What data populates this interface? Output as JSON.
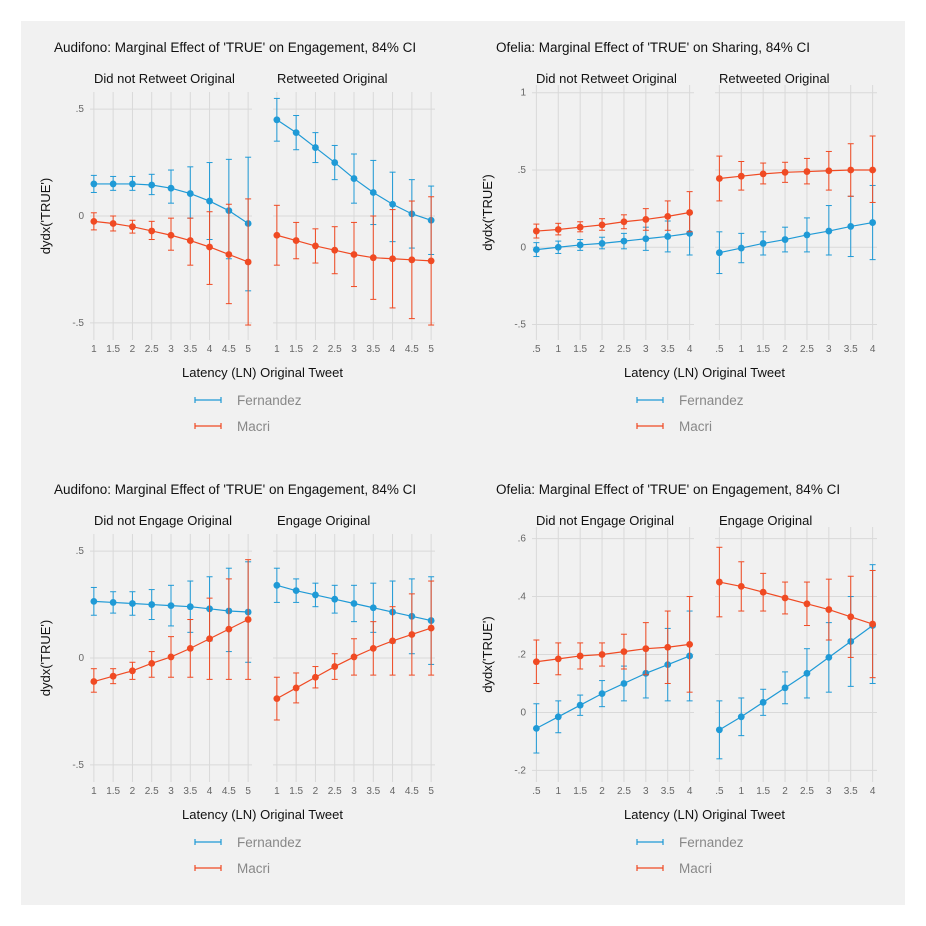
{
  "colors": {
    "background": "#f1f1f1",
    "grid": "#d9d9d9",
    "Fernandez": "#1f9ad6",
    "Macri": "#f04a23"
  },
  "chart_data": [
    {
      "type": "line",
      "title": "Audifono: Marginal Effect of 'TRUE' on Engagement, 84% CI",
      "xlabel": "Latency (LN) Original Tweet",
      "ylabel": "dydx('TRUE')",
      "ylim": [
        -0.58,
        0.58
      ],
      "yticks": [
        -0.5,
        0,
        0.5
      ],
      "ytick_labels": [
        "-.5",
        "0",
        ".5"
      ],
      "xlim": [
        0.9,
        5.1
      ],
      "xticks": [
        1,
        1.5,
        2,
        2.5,
        3,
        3.5,
        4,
        4.5,
        5
      ],
      "xtick_labels": [
        "1",
        "1.5",
        "2",
        "2.5",
        "3",
        "3.5",
        "4",
        "4.5",
        "5"
      ],
      "grid": true,
      "facets": [
        {
          "title": "Did not Retweet Original",
          "series": [
            {
              "name": "Fernandez",
              "x": [
                1,
                1.5,
                2,
                2.5,
                3,
                3.5,
                4,
                4.5,
                5
              ],
              "y": [
                0.15,
                0.15,
                0.15,
                0.145,
                0.13,
                0.105,
                0.07,
                0.025,
                -0.035
              ],
              "lo": [
                0.11,
                0.12,
                0.12,
                0.1,
                0.06,
                -0.01,
                -0.11,
                -0.2,
                -0.35
              ],
              "hi": [
                0.19,
                0.185,
                0.185,
                0.195,
                0.215,
                0.23,
                0.25,
                0.265,
                0.275
              ]
            },
            {
              "name": "Macri",
              "x": [
                1,
                1.5,
                2,
                2.5,
                3,
                3.5,
                4,
                4.5,
                5
              ],
              "y": [
                -0.025,
                -0.035,
                -0.05,
                -0.07,
                -0.09,
                -0.115,
                -0.145,
                -0.18,
                -0.215
              ],
              "lo": [
                -0.065,
                -0.07,
                -0.08,
                -0.11,
                -0.16,
                -0.23,
                -0.32,
                -0.41,
                -0.51
              ],
              "hi": [
                0.015,
                0.0,
                -0.02,
                -0.025,
                -0.01,
                -0.01,
                0.02,
                0.055,
                0.08
              ]
            }
          ]
        },
        {
          "title": "Retweeted Original",
          "series": [
            {
              "name": "Fernandez",
              "x": [
                1,
                1.5,
                2,
                2.5,
                3,
                3.5,
                4,
                4.5,
                5
              ],
              "y": [
                0.45,
                0.39,
                0.32,
                0.25,
                0.175,
                0.11,
                0.055,
                0.01,
                -0.02
              ],
              "lo": [
                0.35,
                0.31,
                0.25,
                0.17,
                0.06,
                -0.04,
                -0.12,
                -0.15,
                -0.18
              ],
              "hi": [
                0.55,
                0.47,
                0.39,
                0.33,
                0.29,
                0.26,
                0.205,
                0.17,
                0.14
              ]
            },
            {
              "name": "Macri",
              "x": [
                1,
                1.5,
                2,
                2.5,
                3,
                3.5,
                4,
                4.5,
                5
              ],
              "y": [
                -0.09,
                -0.115,
                -0.14,
                -0.16,
                -0.18,
                -0.195,
                -0.2,
                -0.205,
                -0.21
              ],
              "lo": [
                -0.23,
                -0.2,
                -0.22,
                -0.27,
                -0.33,
                -0.39,
                -0.43,
                -0.48,
                -0.51
              ],
              "hi": [
                0.05,
                -0.03,
                -0.06,
                -0.05,
                -0.03,
                0.0,
                0.03,
                0.07,
                0.09
              ]
            }
          ]
        }
      ],
      "legend": [
        "Fernandez",
        "Macri"
      ],
      "legend_position": "bottom"
    },
    {
      "type": "line",
      "title": "Ofelia: Marginal Effect of 'TRUE' on Sharing, 84% CI",
      "xlabel": "Latency (LN) Original Tweet",
      "ylabel": "dydx('TRUE')",
      "ylim": [
        -0.6,
        1.05
      ],
      "yticks": [
        -0.5,
        0,
        0.5,
        1
      ],
      "ytick_labels": [
        "-.5",
        "0",
        ".5",
        "1"
      ],
      "xlim": [
        0.4,
        4.1
      ],
      "xticks": [
        0.5,
        1,
        1.5,
        2,
        2.5,
        3,
        3.5,
        4
      ],
      "xtick_labels": [
        ".5",
        "1",
        "1.5",
        "2",
        "2.5",
        "3",
        "3.5",
        "4"
      ],
      "grid": true,
      "facets": [
        {
          "title": "Did not Retweet Original",
          "series": [
            {
              "name": "Fernandez",
              "x": [
                0.5,
                1,
                1.5,
                2,
                2.5,
                3,
                3.5,
                4
              ],
              "y": [
                -0.015,
                0.0,
                0.015,
                0.025,
                0.04,
                0.055,
                0.07,
                0.09
              ],
              "lo": [
                -0.06,
                -0.04,
                -0.02,
                -0.01,
                -0.01,
                -0.02,
                -0.03,
                -0.05
              ],
              "hi": [
                0.03,
                0.04,
                0.05,
                0.065,
                0.09,
                0.13,
                0.17,
                0.22
              ]
            },
            {
              "name": "Macri",
              "x": [
                0.5,
                1,
                1.5,
                2,
                2.5,
                3,
                3.5,
                4
              ],
              "y": [
                0.105,
                0.115,
                0.13,
                0.145,
                0.165,
                0.18,
                0.2,
                0.225
              ],
              "lo": [
                0.06,
                0.08,
                0.1,
                0.11,
                0.12,
                0.11,
                0.11,
                0.1
              ],
              "hi": [
                0.15,
                0.155,
                0.165,
                0.185,
                0.21,
                0.25,
                0.3,
                0.36
              ]
            }
          ]
        },
        {
          "title": "Retweeted Original",
          "series": [
            {
              "name": "Fernandez",
              "x": [
                0.5,
                1,
                1.5,
                2,
                2.5,
                3,
                3.5,
                4
              ],
              "y": [
                -0.035,
                -0.005,
                0.025,
                0.05,
                0.08,
                0.105,
                0.135,
                0.16
              ],
              "lo": [
                -0.17,
                -0.1,
                -0.05,
                -0.03,
                -0.03,
                -0.05,
                -0.06,
                -0.08
              ],
              "hi": [
                0.1,
                0.09,
                0.1,
                0.13,
                0.19,
                0.27,
                0.33,
                0.4
              ]
            },
            {
              "name": "Macri",
              "x": [
                0.5,
                1,
                1.5,
                2,
                2.5,
                3,
                3.5,
                4
              ],
              "y": [
                0.445,
                0.46,
                0.475,
                0.485,
                0.49,
                0.495,
                0.5,
                0.5
              ],
              "lo": [
                0.3,
                0.37,
                0.41,
                0.42,
                0.41,
                0.37,
                0.33,
                0.29
              ],
              "hi": [
                0.59,
                0.555,
                0.545,
                0.55,
                0.575,
                0.62,
                0.67,
                0.72
              ]
            }
          ]
        }
      ],
      "legend": [
        "Fernandez",
        "Macri"
      ],
      "legend_position": "bottom"
    },
    {
      "type": "line",
      "title": "Audifono: Marginal Effect of 'TRUE' on Engagement, 84% CI",
      "xlabel": "Latency (LN) Original Tweet",
      "ylabel": "dydx('TRUE')",
      "ylim": [
        -0.58,
        0.58
      ],
      "yticks": [
        -0.5,
        0,
        0.5
      ],
      "ytick_labels": [
        "-.5",
        "0",
        ".5"
      ],
      "xlim": [
        0.9,
        5.1
      ],
      "xticks": [
        1,
        1.5,
        2,
        2.5,
        3,
        3.5,
        4,
        4.5,
        5
      ],
      "xtick_labels": [
        "1",
        "1.5",
        "2",
        "2.5",
        "3",
        "3.5",
        "4",
        "4.5",
        "5"
      ],
      "grid": true,
      "facets": [
        {
          "title": "Did not Engage Original",
          "series": [
            {
              "name": "Fernandez",
              "x": [
                1,
                1.5,
                2,
                2.5,
                3,
                3.5,
                4,
                4.5,
                5
              ],
              "y": [
                0.265,
                0.26,
                0.255,
                0.25,
                0.245,
                0.24,
                0.23,
                0.22,
                0.215
              ],
              "lo": [
                0.2,
                0.21,
                0.2,
                0.18,
                0.15,
                0.12,
                0.08,
                0.03,
                -0.02
              ],
              "hi": [
                0.33,
                0.31,
                0.31,
                0.32,
                0.34,
                0.36,
                0.38,
                0.42,
                0.45
              ]
            },
            {
              "name": "Macri",
              "x": [
                1,
                1.5,
                2,
                2.5,
                3,
                3.5,
                4,
                4.5,
                5
              ],
              "y": [
                -0.11,
                -0.085,
                -0.06,
                -0.025,
                0.005,
                0.045,
                0.09,
                0.135,
                0.18
              ],
              "lo": [
                -0.16,
                -0.12,
                -0.1,
                -0.09,
                -0.09,
                -0.09,
                -0.1,
                -0.1,
                -0.1
              ],
              "hi": [
                -0.05,
                -0.05,
                -0.02,
                0.03,
                0.1,
                0.18,
                0.28,
                0.37,
                0.46
              ]
            }
          ]
        },
        {
          "title": "Engage Original",
          "series": [
            {
              "name": "Fernandez",
              "x": [
                1,
                1.5,
                2,
                2.5,
                3,
                3.5,
                4,
                4.5,
                5
              ],
              "y": [
                0.34,
                0.315,
                0.295,
                0.275,
                0.255,
                0.235,
                0.215,
                0.195,
                0.175
              ],
              "lo": [
                0.26,
                0.26,
                0.24,
                0.21,
                0.17,
                0.12,
                0.07,
                0.02,
                -0.03
              ],
              "hi": [
                0.42,
                0.37,
                0.35,
                0.34,
                0.34,
                0.35,
                0.36,
                0.37,
                0.38
              ]
            },
            {
              "name": "Macri",
              "x": [
                1,
                1.5,
                2,
                2.5,
                3,
                3.5,
                4,
                4.5,
                5
              ],
              "y": [
                -0.19,
                -0.14,
                -0.09,
                -0.04,
                0.005,
                0.045,
                0.08,
                0.11,
                0.14
              ],
              "lo": [
                -0.29,
                -0.21,
                -0.14,
                -0.1,
                -0.08,
                -0.08,
                -0.08,
                -0.08,
                -0.08
              ],
              "hi": [
                -0.09,
                -0.07,
                -0.04,
                0.02,
                0.09,
                0.17,
                0.24,
                0.3,
                0.36
              ]
            }
          ]
        }
      ],
      "legend": [
        "Fernandez",
        "Macri"
      ],
      "legend_position": "bottom"
    },
    {
      "type": "line",
      "title": "Ofelia: Marginal Effect of 'TRUE' on Engagement, 84% CI",
      "xlabel": "Latency (LN) Original Tweet",
      "ylabel": "dydx('TRUE')",
      "ylim": [
        -0.24,
        0.64
      ],
      "yticks": [
        -0.2,
        0,
        0.2,
        0.4,
        0.6
      ],
      "ytick_labels": [
        "-.2",
        "0",
        ".2",
        ".4",
        ".6"
      ],
      "xlim": [
        0.4,
        4.1
      ],
      "xticks": [
        0.5,
        1,
        1.5,
        2,
        2.5,
        3,
        3.5,
        4
      ],
      "xtick_labels": [
        ".5",
        "1",
        "1.5",
        "2",
        "2.5",
        "3",
        "3.5",
        "4"
      ],
      "grid": true,
      "facets": [
        {
          "title": "Did not Engage Original",
          "series": [
            {
              "name": "Fernandez",
              "x": [
                0.5,
                1,
                1.5,
                2,
                2.5,
                3,
                3.5,
                4
              ],
              "y": [
                -0.055,
                -0.015,
                0.025,
                0.065,
                0.1,
                0.135,
                0.165,
                0.195
              ],
              "lo": [
                -0.14,
                -0.07,
                -0.01,
                0.02,
                0.04,
                0.05,
                0.04,
                0.04
              ],
              "hi": [
                0.03,
                0.04,
                0.06,
                0.11,
                0.16,
                0.22,
                0.29,
                0.35
              ]
            },
            {
              "name": "Macri",
              "x": [
                0.5,
                1,
                1.5,
                2,
                2.5,
                3,
                3.5,
                4
              ],
              "y": [
                0.175,
                0.185,
                0.195,
                0.2,
                0.21,
                0.22,
                0.225,
                0.235
              ],
              "lo": [
                0.1,
                0.13,
                0.15,
                0.16,
                0.15,
                0.13,
                0.1,
                0.07
              ],
              "hi": [
                0.25,
                0.24,
                0.24,
                0.24,
                0.27,
                0.31,
                0.35,
                0.4
              ]
            }
          ]
        },
        {
          "title": "Engage Original",
          "series": [
            {
              "name": "Fernandez",
              "x": [
                0.5,
                1,
                1.5,
                2,
                2.5,
                3,
                3.5,
                4
              ],
              "y": [
                -0.06,
                -0.015,
                0.035,
                0.085,
                0.135,
                0.19,
                0.245,
                0.3
              ],
              "lo": [
                -0.16,
                -0.08,
                -0.01,
                0.03,
                0.05,
                0.07,
                0.09,
                0.1
              ],
              "hi": [
                0.04,
                0.05,
                0.08,
                0.14,
                0.22,
                0.31,
                0.4,
                0.51
              ]
            },
            {
              "name": "Macri",
              "x": [
                0.5,
                1,
                1.5,
                2,
                2.5,
                3,
                3.5,
                4
              ],
              "y": [
                0.45,
                0.435,
                0.415,
                0.395,
                0.375,
                0.355,
                0.33,
                0.305
              ],
              "lo": [
                0.33,
                0.35,
                0.35,
                0.34,
                0.3,
                0.25,
                0.19,
                0.12
              ],
              "hi": [
                0.57,
                0.52,
                0.48,
                0.45,
                0.45,
                0.46,
                0.47,
                0.49
              ]
            }
          ]
        }
      ],
      "legend": [
        "Fernandez",
        "Macri"
      ],
      "legend_position": "bottom"
    }
  ]
}
